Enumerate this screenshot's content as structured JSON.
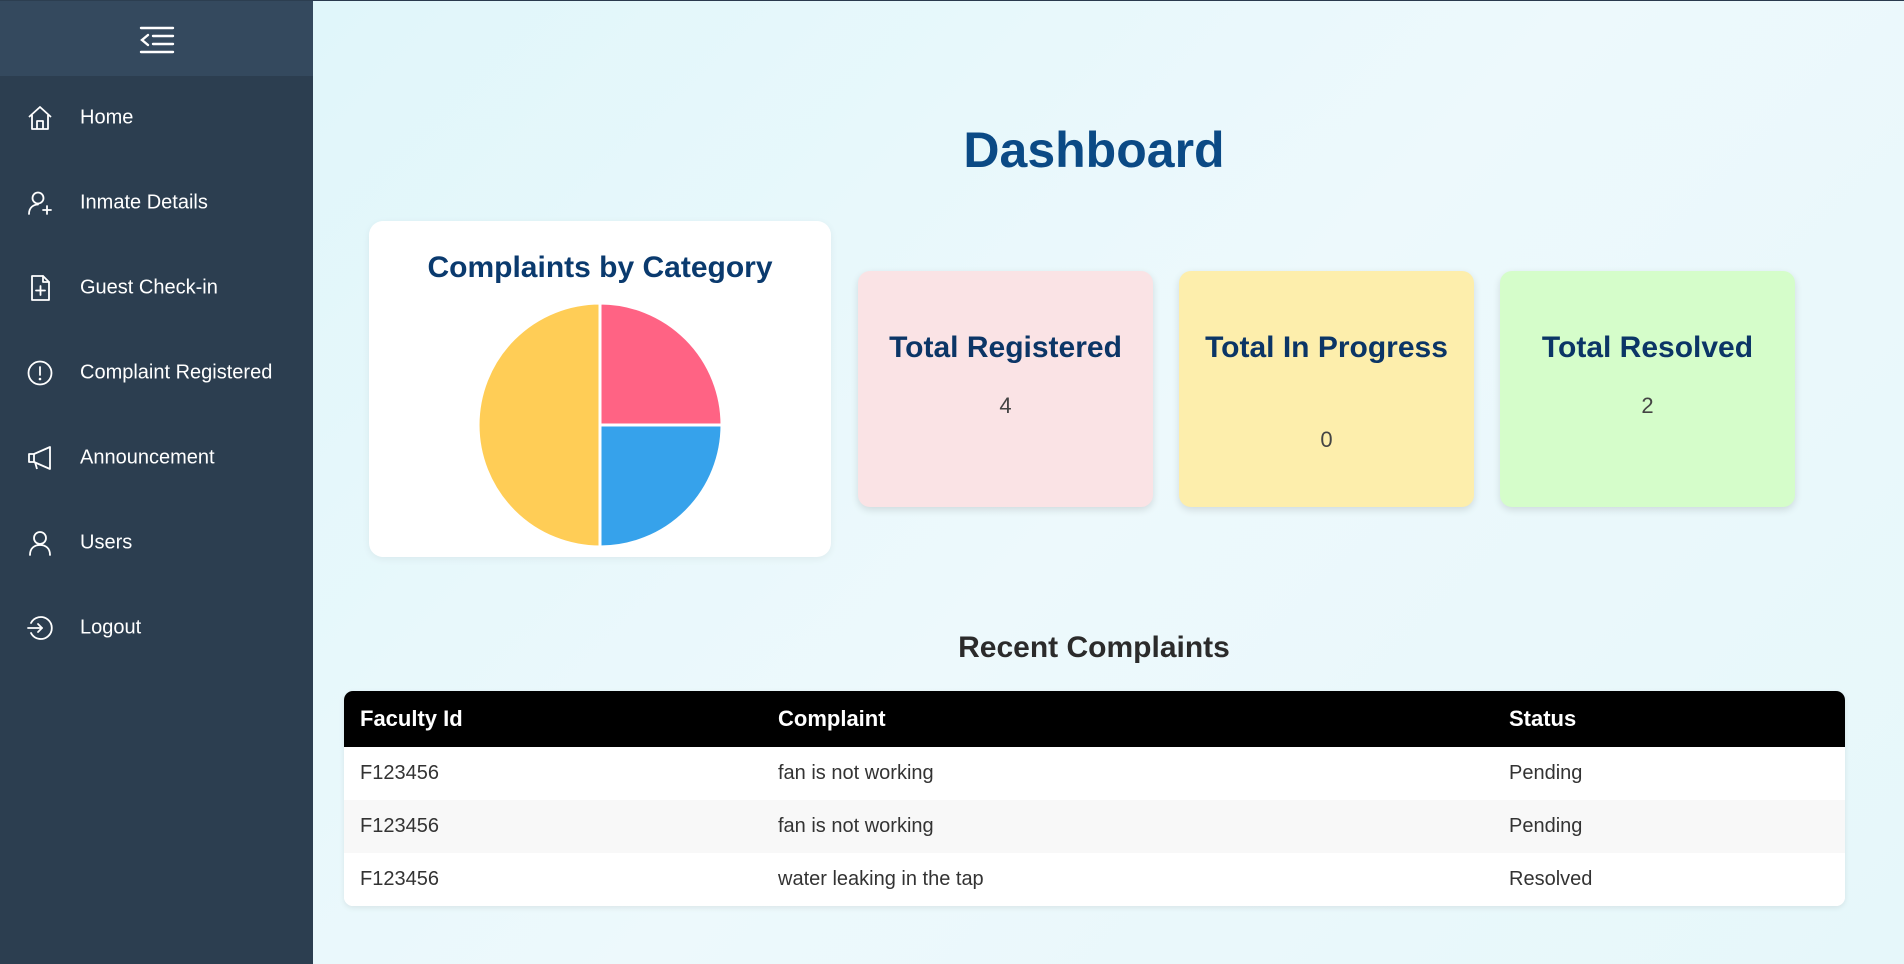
{
  "sidebar": {
    "items": [
      {
        "label": "Home",
        "icon": "home-icon"
      },
      {
        "label": "Inmate Details",
        "icon": "user-plus-icon"
      },
      {
        "label": "Guest Check-in",
        "icon": "file-plus-icon"
      },
      {
        "label": "Complaint Registered",
        "icon": "alert-circle-icon"
      },
      {
        "label": "Announcement",
        "icon": "megaphone-icon"
      },
      {
        "label": "Users",
        "icon": "user-icon"
      },
      {
        "label": "Logout",
        "icon": "logout-icon"
      }
    ]
  },
  "page": {
    "title": "Dashboard"
  },
  "chart_data": {
    "type": "pie",
    "title": "Complaints by Category",
    "values": [
      1,
      1,
      2
    ],
    "colors": [
      "#ff6384",
      "#36a2eb",
      "#ffcd56"
    ]
  },
  "stats": {
    "registered": {
      "label": "Total Registered",
      "value": "4"
    },
    "in_progress": {
      "label": "Total In Progress",
      "value": "0"
    },
    "resolved": {
      "label": "Total Resolved",
      "value": "2"
    }
  },
  "recent": {
    "title": "Recent Complaints",
    "columns": [
      "Faculty Id",
      "Complaint",
      "Status"
    ],
    "rows": [
      [
        "F123456",
        "fan is not working",
        "Pending"
      ],
      [
        "F123456",
        "fan is not working",
        "Pending"
      ],
      [
        "F123456",
        "water leaking in the tap",
        "Resolved"
      ]
    ]
  }
}
